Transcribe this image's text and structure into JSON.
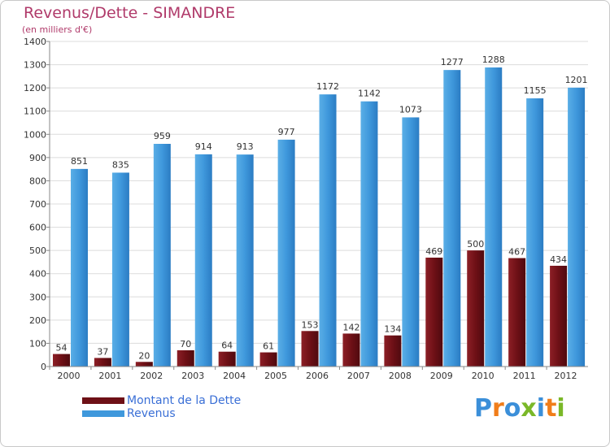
{
  "header": {
    "title": "Revenus/Dette - SIMANDRE",
    "subtitle": "(en milliers d'€)"
  },
  "legend": [
    {
      "label": "Montant de la Dette",
      "color": "#6e1016"
    },
    {
      "label": "Revenus",
      "color": "#3f98dc"
    }
  ],
  "logo": {
    "text": "Proxiti",
    "colors": [
      "#3b8fd9",
      "#f07d1a",
      "#3b8fd9",
      "#7ab828",
      "#3b8fd9",
      "#f07d1a",
      "#7ab828"
    ]
  },
  "colors": {
    "debt": "#6e1016",
    "debt_light": "#9e2a30",
    "revenue": "#3f98dc",
    "revenue_dark": "#2b7cc3"
  },
  "chart_data": {
    "type": "bar",
    "title": "Revenus/Dette - SIMANDRE",
    "subtitle": "(en milliers d'€)",
    "categories": [
      "2000",
      "2001",
      "2002",
      "2003",
      "2004",
      "2005",
      "2006",
      "2007",
      "2008",
      "2009",
      "2010",
      "2011",
      "2012"
    ],
    "series": [
      {
        "name": "Montant de la Dette",
        "values": [
          54,
          37,
          20,
          70,
          64,
          61,
          153,
          142,
          134,
          469,
          500,
          467,
          434
        ]
      },
      {
        "name": "Revenus",
        "values": [
          851,
          835,
          959,
          914,
          913,
          977,
          1172,
          1142,
          1073,
          1277,
          1288,
          1155,
          1201
        ]
      }
    ],
    "ylim": [
      0,
      1400
    ],
    "yticks": [
      "0",
      "100",
      "200",
      "300",
      "400",
      "500",
      "600",
      "700",
      "800",
      "900",
      "1000",
      "1100",
      "1200",
      "1300",
      "1400"
    ],
    "grid": true,
    "legend_position": "bottom-left"
  }
}
